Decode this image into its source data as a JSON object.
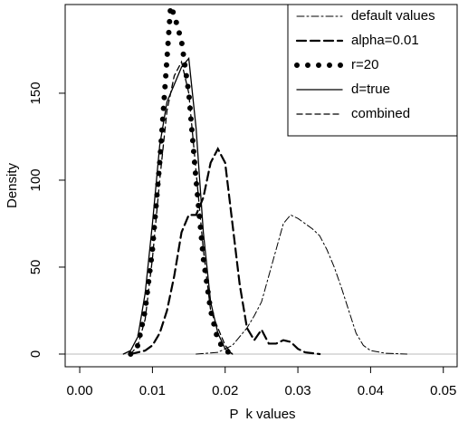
{
  "chart_data": {
    "type": "line",
    "x_label": "P  k values",
    "y_label": "Density",
    "xlim": [
      -0.002,
      0.0519
    ],
    "ylim": [
      -7.3,
      201
    ],
    "xticks": [
      {
        "value": 0,
        "label": "0.00"
      },
      {
        "value": 0.01,
        "label": "0.01"
      },
      {
        "value": 0.02,
        "label": "0.02"
      },
      {
        "value": 0.03,
        "label": "0.03"
      },
      {
        "value": 0.04,
        "label": "0.04"
      },
      {
        "value": 0.05,
        "label": "0.05"
      }
    ],
    "yticks": [
      0,
      50,
      100,
      150
    ],
    "zero_line": true,
    "legend": "top-right",
    "series": [
      {
        "name": "default values",
        "color": "#000000",
        "dash": "8,3,2,3",
        "width": 1,
        "x": [
          0.016,
          0.019,
          0.021,
          0.023,
          0.024,
          0.025,
          0.026,
          0.027,
          0.028,
          0.029,
          0.03,
          0.031,
          0.032,
          0.033,
          0.034,
          0.035,
          0.036,
          0.037,
          0.038,
          0.039,
          0.04,
          0.042,
          0.045
        ],
        "values": [
          0,
          1,
          5,
          15,
          22,
          30,
          45,
          60,
          75,
          80,
          78,
          75,
          72,
          68,
          60,
          50,
          38,
          25,
          12,
          5,
          2,
          0.5,
          0
        ]
      },
      {
        "name": "alpha=0.01",
        "color": "#000000",
        "dash": "10,5",
        "width": 2.2,
        "x": [
          0.007,
          0.009,
          0.01,
          0.011,
          0.012,
          0.013,
          0.014,
          0.015,
          0.016,
          0.017,
          0.018,
          0.019,
          0.02,
          0.021,
          0.022,
          0.023,
          0.024,
          0.025,
          0.026,
          0.027,
          0.028,
          0.029,
          0.03,
          0.031,
          0.033
        ],
        "values": [
          0,
          2,
          5,
          12,
          25,
          45,
          70,
          80,
          80,
          90,
          110,
          118,
          110,
          75,
          40,
          15,
          8,
          14,
          6,
          6,
          8,
          7,
          3,
          1,
          0
        ]
      },
      {
        "name": "r=20",
        "color": "#000000",
        "dash": "0,12",
        "width": 6,
        "x": [
          0.007,
          0.008,
          0.009,
          0.01,
          0.011,
          0.012,
          0.0125,
          0.013,
          0.014,
          0.015,
          0.016,
          0.017,
          0.018,
          0.019,
          0.02,
          0.021
        ],
        "values": [
          0,
          5,
          25,
          60,
          110,
          170,
          200,
          195,
          180,
          150,
          100,
          55,
          25,
          8,
          2,
          0
        ]
      },
      {
        "name": "d=true",
        "color": "#000000",
        "dash": "none",
        "width": 1.3,
        "x": [
          0.006,
          0.007,
          0.008,
          0.009,
          0.01,
          0.011,
          0.012,
          0.013,
          0.014,
          0.015,
          0.016,
          0.017,
          0.018,
          0.019,
          0.02,
          0.021
        ],
        "values": [
          0,
          2,
          10,
          35,
          75,
          120,
          145,
          155,
          165,
          170,
          130,
          70,
          30,
          12,
          3,
          0
        ]
      },
      {
        "name": "combined",
        "color": "#000000",
        "dash": "6,4",
        "width": 1.3,
        "x": [
          0.007,
          0.008,
          0.009,
          0.01,
          0.011,
          0.012,
          0.013,
          0.014,
          0.015,
          0.016,
          0.017,
          0.018,
          0.019,
          0.02,
          0.021
        ],
        "values": [
          0,
          5,
          20,
          55,
          100,
          140,
          160,
          168,
          150,
          105,
          60,
          25,
          15,
          5,
          0
        ]
      }
    ]
  }
}
